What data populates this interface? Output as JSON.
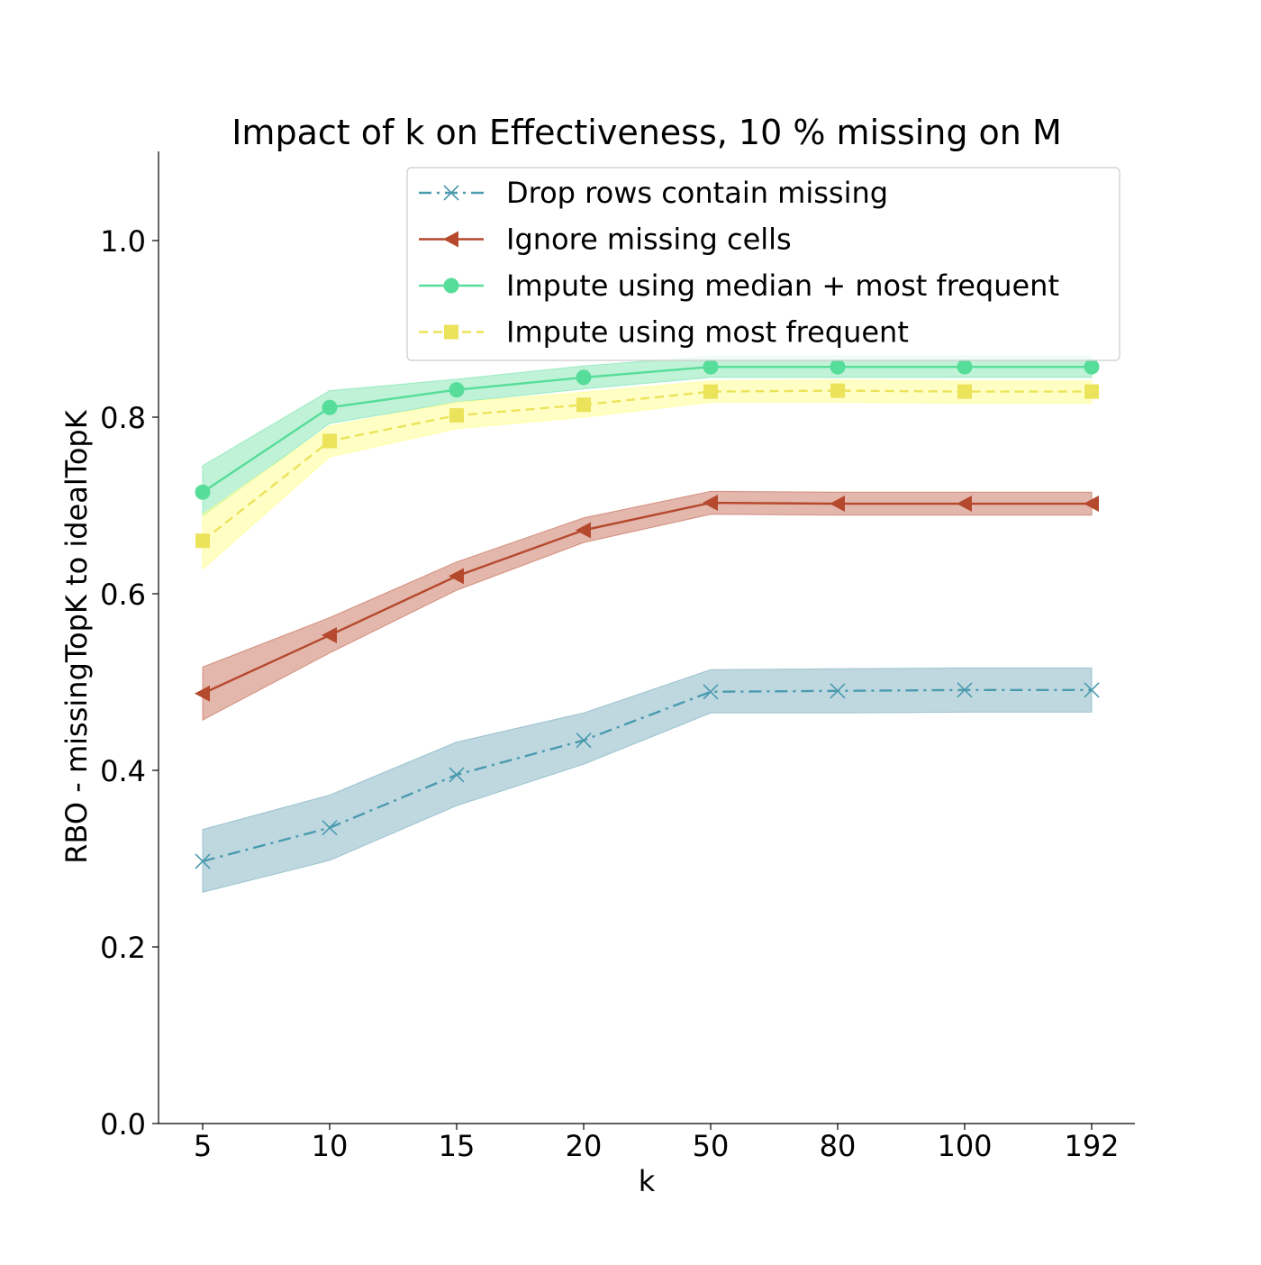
{
  "chart_data": {
    "type": "line",
    "title": "Impact of k on Effectiveness, 10 % missing on M",
    "xlabel": "k",
    "ylabel": "RBO - missingTopK to idealTopK",
    "categories": [
      "5",
      "10",
      "15",
      "20",
      "50",
      "80",
      "100",
      "192"
    ],
    "ylim": [
      0,
      1.1
    ],
    "yticks": [
      0.0,
      0.2,
      0.4,
      0.6,
      0.8,
      1.0
    ],
    "ytick_labels": [
      "0.0",
      "0.2",
      "0.4",
      "0.6",
      "0.8",
      "1.0"
    ],
    "grid": false,
    "legend_position": "top-right",
    "series": [
      {
        "name": "Drop rows contain missing",
        "color": "#4a9aae",
        "band_color": "#7fb2c2",
        "line_style": "dashdot",
        "marker": "x",
        "values": [
          0.297,
          0.335,
          0.395,
          0.434,
          0.489,
          0.49,
          0.491,
          0.491
        ],
        "lower": [
          0.262,
          0.298,
          0.36,
          0.407,
          0.465,
          0.465,
          0.466,
          0.466
        ],
        "upper": [
          0.333,
          0.372,
          0.432,
          0.465,
          0.514,
          0.515,
          0.516,
          0.516
        ]
      },
      {
        "name": "Ignore missing cells",
        "color": "#b5492d",
        "band_color": "#c8705a",
        "line_style": "solid",
        "marker": "triangle-left",
        "values": [
          0.487,
          0.553,
          0.62,
          0.672,
          0.703,
          0.702,
          0.702,
          0.702
        ],
        "lower": [
          0.457,
          0.533,
          0.604,
          0.658,
          0.69,
          0.689,
          0.689,
          0.689
        ],
        "upper": [
          0.517,
          0.573,
          0.636,
          0.686,
          0.716,
          0.715,
          0.715,
          0.715
        ]
      },
      {
        "name": "Impute using median + most frequent",
        "color": "#56dd99",
        "band_color": "#7fe5b0",
        "line_style": "solid",
        "marker": "circle",
        "values": [
          0.715,
          0.811,
          0.831,
          0.845,
          0.857,
          0.857,
          0.857,
          0.857
        ],
        "lower": [
          0.688,
          0.793,
          0.817,
          0.832,
          0.845,
          0.845,
          0.845,
          0.845
        ],
        "upper": [
          0.745,
          0.83,
          0.843,
          0.858,
          0.869,
          0.869,
          0.869,
          0.869
        ]
      },
      {
        "name": "Impute using most frequent",
        "color": "#ebe35a",
        "band_color": "#ffff8c",
        "line_style": "dashed",
        "marker": "square",
        "values": [
          0.66,
          0.773,
          0.802,
          0.814,
          0.829,
          0.83,
          0.829,
          0.829
        ],
        "lower": [
          0.628,
          0.755,
          0.787,
          0.8,
          0.817,
          0.817,
          0.816,
          0.816
        ],
        "upper": [
          0.69,
          0.79,
          0.817,
          0.828,
          0.841,
          0.842,
          0.841,
          0.841
        ]
      }
    ]
  }
}
